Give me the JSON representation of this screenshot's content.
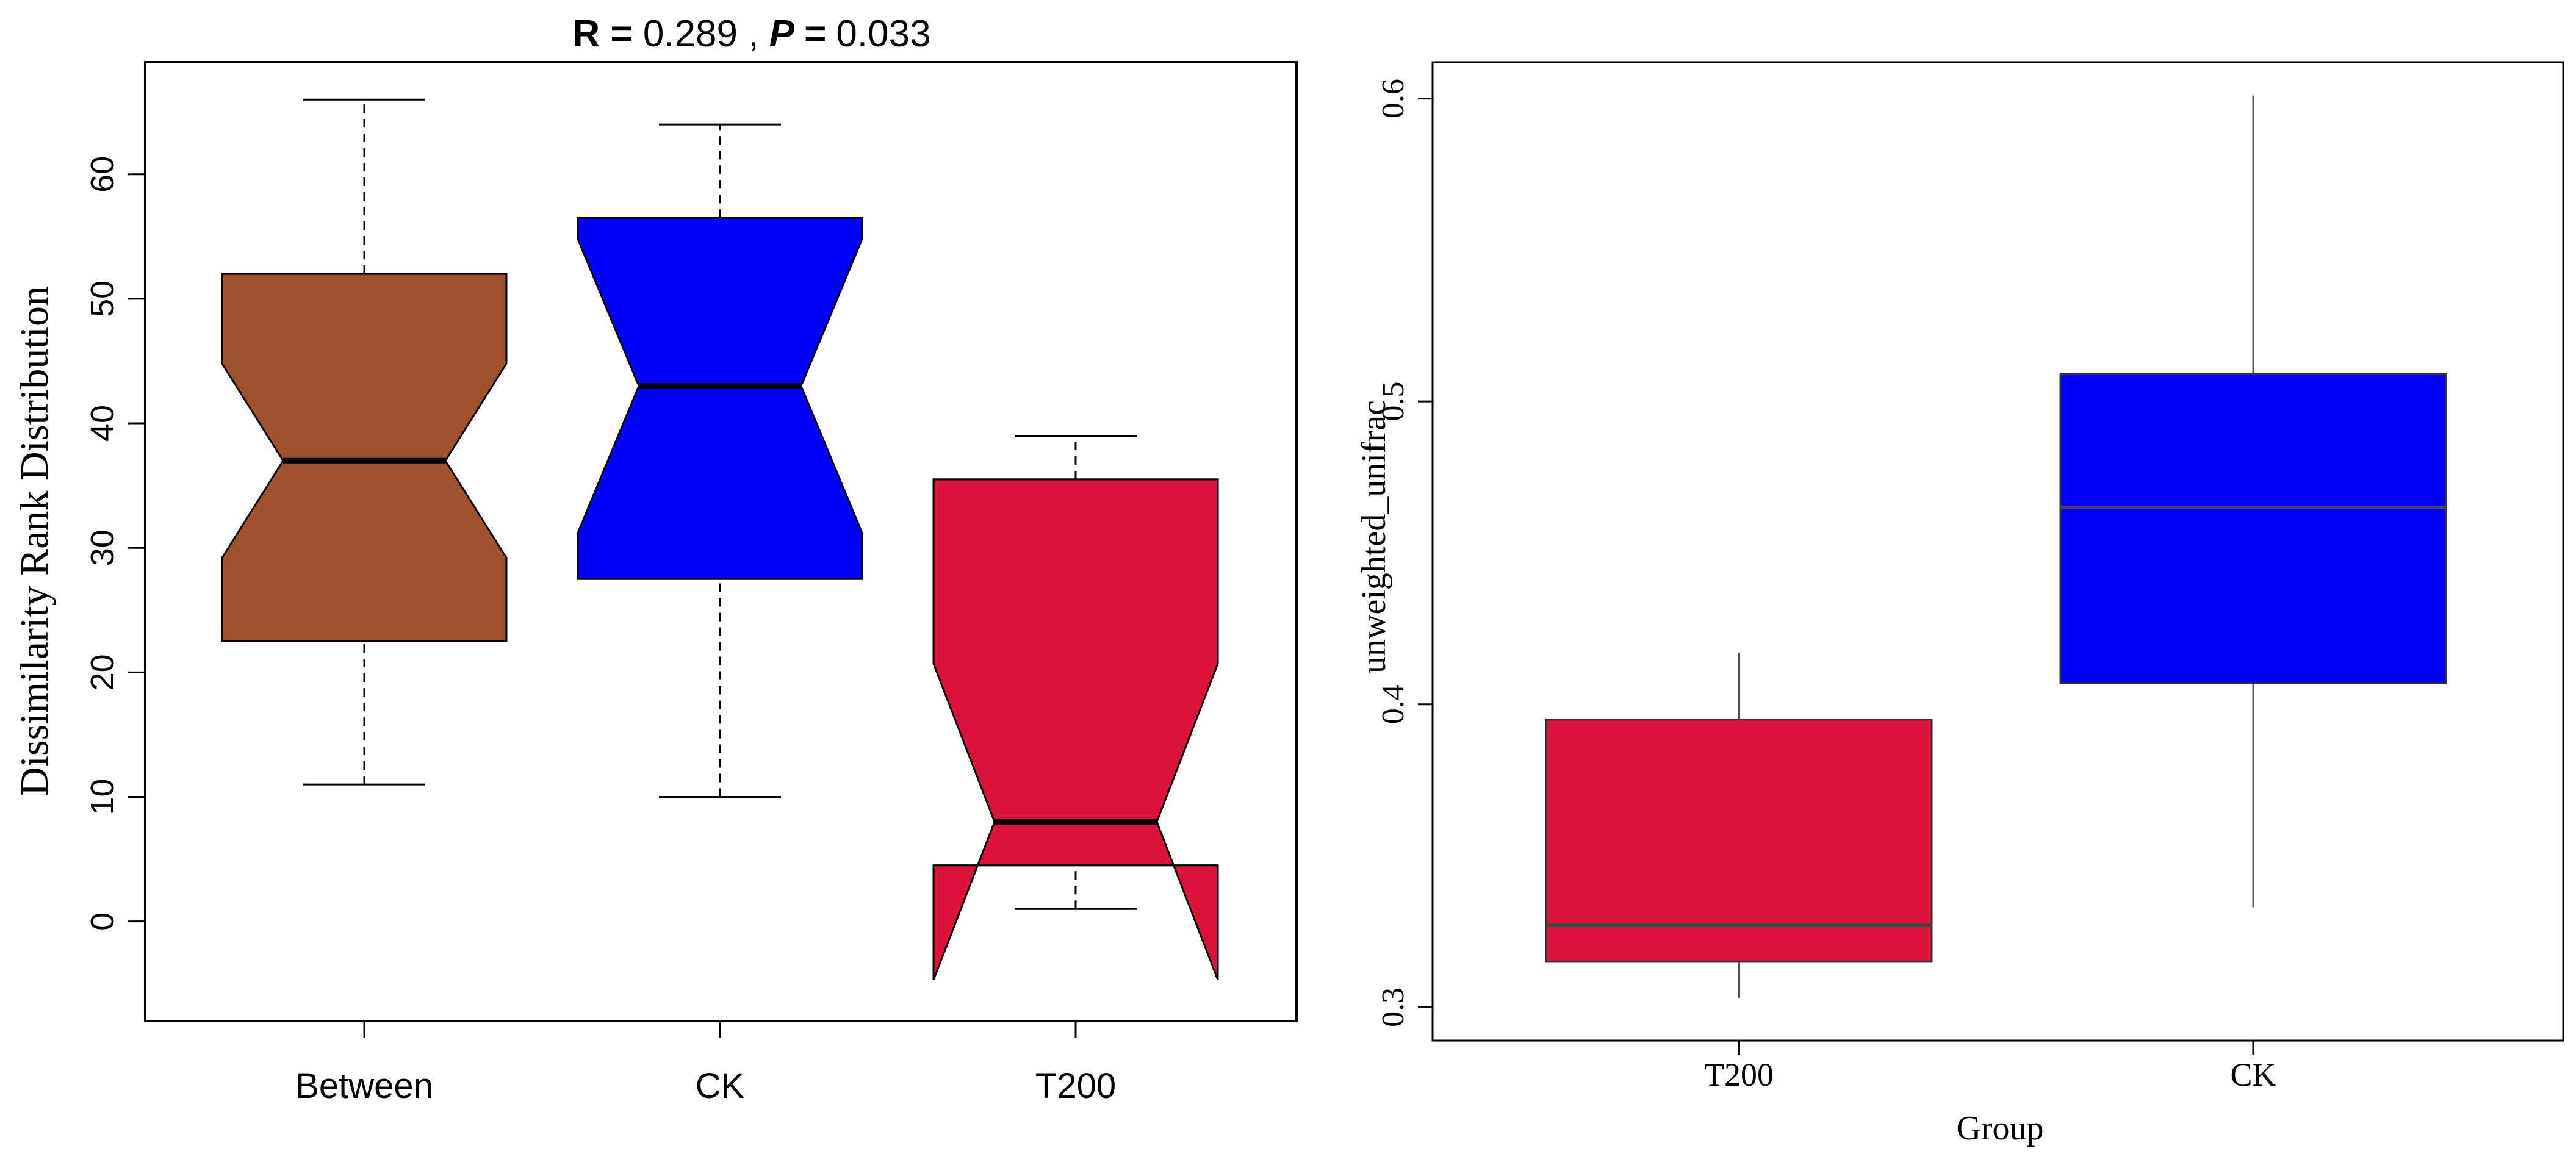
{
  "chart_data": [
    {
      "type": "boxplot",
      "notched": true,
      "title_parts": [
        "R =",
        "0.289",
        ",",
        "P =",
        "0.033"
      ],
      "xlabel": "",
      "ylabel": "Dissimilarity Rank Distribution",
      "ylim": [
        -8,
        69
      ],
      "yticks": [
        0,
        10,
        20,
        30,
        40,
        50,
        60
      ],
      "grid": false,
      "whisker_style": "dashed",
      "categories": [
        "Between",
        "CK",
        "T200"
      ],
      "boxes": [
        {
          "label": "Between",
          "color": "#A0522D",
          "min": 11,
          "q1": 22.5,
          "median": 37,
          "q3": 52,
          "max": 66,
          "notch_low": 29.2,
          "notch_high": 44.8
        },
        {
          "label": "CK",
          "color": "#0000FF",
          "min": 10,
          "q1": 27.5,
          "median": 43,
          "q3": 56.5,
          "max": 64,
          "notch_low": 31.2,
          "notch_high": 54.8
        },
        {
          "label": "T200",
          "color": "#DC143C",
          "min": 1,
          "q1": 4.5,
          "median": 8,
          "q3": 35.5,
          "max": 39,
          "notch_low": -4.7,
          "notch_high": 20.7
        }
      ]
    },
    {
      "type": "boxplot",
      "notched": false,
      "title": "",
      "xlabel": "Group",
      "ylabel": "unweighted_unifrac",
      "ylim": [
        0.289,
        0.612
      ],
      "yticks": [
        "0.3",
        "0.4",
        "0.5",
        "0.6"
      ],
      "grid": false,
      "whisker_style": "solid",
      "categories": [
        "T200",
        "CK"
      ],
      "boxes": [
        {
          "label": "T200",
          "color": "#DC143C",
          "min": 0.303,
          "q1": 0.315,
          "median": 0.327,
          "q3": 0.395,
          "max": 0.417
        },
        {
          "label": "CK",
          "color": "#0000FF",
          "min": 0.333,
          "q1": 0.407,
          "median": 0.465,
          "q3": 0.509,
          "max": 0.601
        }
      ]
    }
  ]
}
